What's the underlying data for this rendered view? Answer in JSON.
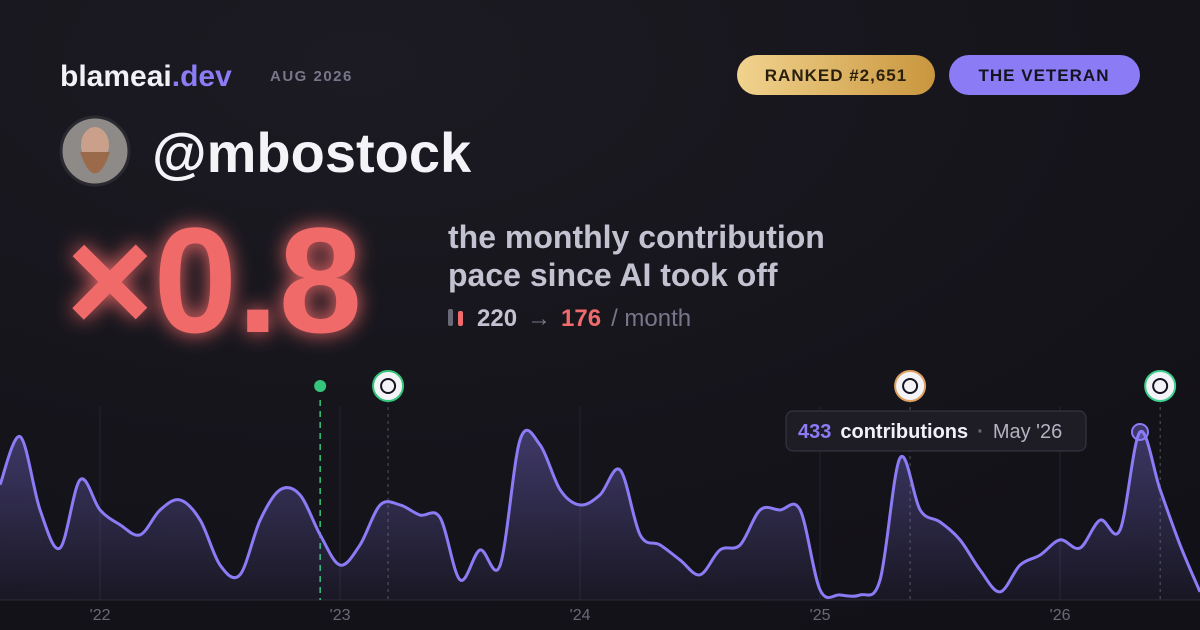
{
  "header": {
    "brand_name": "blameai",
    "brand_tld": ".dev",
    "date": "AUG 2026"
  },
  "badges": [
    "RANKED #2,651",
    "THE VETERAN"
  ],
  "user": {
    "handle": "@mbostock"
  },
  "headline": {
    "multiplier": "×0.8",
    "description": [
      "the monthly contribution",
      "pace since AI took off"
    ],
    "pace": {
      "before": 220,
      "arrow": "→",
      "after": 176,
      "unit": "/ month"
    }
  },
  "tooltip": {
    "value": 433,
    "label": "contributions",
    "separator": "·",
    "date": "May '26"
  },
  "chart_data": {
    "type": "area",
    "color": "#8b7cf6",
    "x": [
      2021.583,
      2021.667,
      2021.75,
      2021.833,
      2021.917,
      2022,
      2022.083,
      2022.167,
      2022.25,
      2022.333,
      2022.417,
      2022.5,
      2022.583,
      2022.667,
      2022.75,
      2022.833,
      2022.917,
      2023,
      2023.083,
      2023.167,
      2023.25,
      2023.333,
      2023.417,
      2023.5,
      2023.583,
      2023.667,
      2023.75,
      2023.833,
      2023.917,
      2024,
      2024.083,
      2024.167,
      2024.25,
      2024.333,
      2024.417,
      2024.5,
      2024.583,
      2024.667,
      2024.75,
      2024.833,
      2024.917,
      2025,
      2025.083,
      2025.167,
      2025.25,
      2025.333,
      2025.417,
      2025.5,
      2025.583,
      2025.667,
      2025.75,
      2025.833,
      2025.917,
      2026,
      2026.083,
      2026.167,
      2026.25,
      2026.333,
      2026.417,
      2026.5,
      2026.583
    ],
    "series": [
      {
        "values": [
          297,
          421,
          232,
          134,
          310,
          232,
          194,
          168,
          232,
          258,
          206,
          90,
          65,
          206,
          284,
          271,
          168,
          90,
          142,
          245,
          245,
          219,
          212,
          52,
          129,
          90,
          413,
          400,
          284,
          245,
          271,
          335,
          168,
          142,
          103,
          65,
          129,
          142,
          232,
          232,
          232,
          26,
          13,
          13,
          52,
          366,
          232,
          201,
          155,
          77,
          21,
          90,
          116,
          155,
          134,
          206,
          181,
          433,
          284,
          142,
          21
        ]
      }
    ],
    "events": [
      2022.917,
      2023.2,
      2025.375,
      2026.417
    ],
    "xlim": [
      2021.583,
      2026.583
    ],
    "ylim": [
      0,
      500
    ],
    "xticks": [
      {
        "value": 2022,
        "label": "'22"
      },
      {
        "value": 2023,
        "label": "'23"
      },
      {
        "value": 2024,
        "label": "'24"
      },
      {
        "value": 2025,
        "label": "'25"
      },
      {
        "value": 2026,
        "label": "'26"
      }
    ],
    "grid": true
  }
}
